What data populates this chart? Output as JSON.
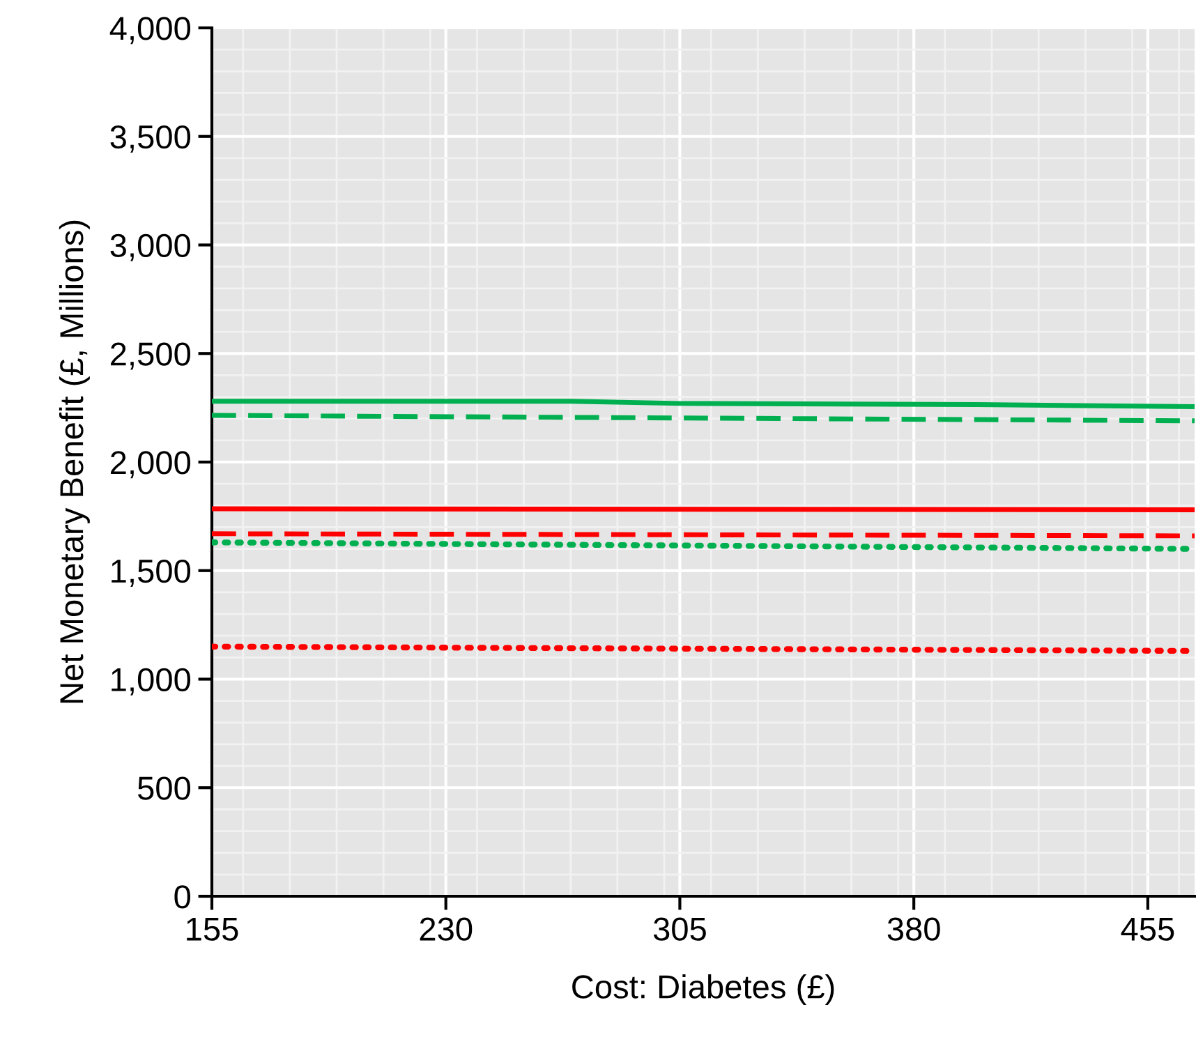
{
  "chart_data": {
    "type": "line",
    "xlabel": "Cost: Diabetes (£)",
    "ylabel": "Net Monetary Benefit (£, Millions)",
    "xlim": [
      155,
      470
    ],
    "xticks": [
      155,
      230,
      305,
      380,
      455
    ],
    "ylim": [
      0,
      4000
    ],
    "yticks": [
      {
        "value": 0,
        "label": "0"
      },
      {
        "value": 500,
        "label": "500"
      },
      {
        "value": 1000,
        "label": "1,000"
      },
      {
        "value": 1500,
        "label": "1,500"
      },
      {
        "value": 2000,
        "label": "2,000"
      },
      {
        "value": 2500,
        "label": "2,500"
      },
      {
        "value": 3000,
        "label": "3,000"
      },
      {
        "value": 3500,
        "label": "3,500"
      },
      {
        "value": 4000,
        "label": "4,000"
      }
    ],
    "grid": true,
    "legend": false,
    "marker": "none",
    "series": [
      {
        "color": "#00b050",
        "line_style": "solid",
        "x": [
          155,
          270,
          305,
          400,
          470
        ],
        "values": [
          2280,
          2280,
          2270,
          2265,
          2255
        ]
      },
      {
        "color": "#00b050",
        "line_style": "dashed",
        "x": [
          155,
          470
        ],
        "values": [
          2215,
          2190
        ]
      },
      {
        "color": "#ff0000",
        "line_style": "solid",
        "x": [
          155,
          470
        ],
        "values": [
          1785,
          1780
        ]
      },
      {
        "color": "#ff0000",
        "line_style": "dashed",
        "x": [
          155,
          470
        ],
        "values": [
          1670,
          1660
        ]
      },
      {
        "color": "#00b050",
        "line_style": "dotted",
        "x": [
          155,
          470
        ],
        "values": [
          1630,
          1600
        ]
      },
      {
        "color": "#ff0000",
        "line_style": "dotted",
        "x": [
          155,
          470
        ],
        "values": [
          1150,
          1130
        ]
      }
    ]
  }
}
